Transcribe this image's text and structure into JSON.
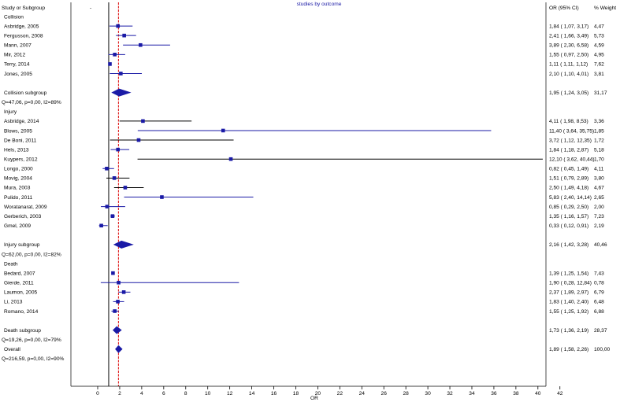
{
  "chart_data": {
    "type": "forest",
    "title": "studies by outcome",
    "xlabel": "OR",
    "xlim": [
      -1,
      42
    ],
    "xticks": [
      0,
      2,
      4,
      6,
      8,
      10,
      12,
      14,
      16,
      18,
      20,
      22,
      24,
      26,
      28,
      30,
      32,
      34,
      36,
      38,
      40,
      42
    ],
    "null_line": 1,
    "overall_line": 1.89,
    "headers": {
      "study": "Study or Subgroup",
      "ci": "OR (95% CI)",
      "weight": "% Weight",
      "dash": "-"
    },
    "rows": [
      {
        "kind": "group",
        "label": "Collision"
      },
      {
        "kind": "study",
        "label": "Asbridge, 2005",
        "or": 1.84,
        "lo": 1.07,
        "hi": 3.17,
        "ci_text": "1,84 ( 1,07, 3,17)",
        "weight": "4,47",
        "line": "blue"
      },
      {
        "kind": "study",
        "label": "Fergusson, 2008",
        "or": 2.41,
        "lo": 1.66,
        "hi": 3.49,
        "ci_text": "2,41 ( 1,66, 3,49)",
        "weight": "5,73",
        "line": "blue"
      },
      {
        "kind": "study",
        "label": "Mann, 2007",
        "or": 3.89,
        "lo": 2.3,
        "hi": 6.58,
        "ci_text": "3,89 ( 2,30, 6,58)",
        "weight": "4,59",
        "line": "blue"
      },
      {
        "kind": "study",
        "label": "Mir, 2012",
        "or": 1.55,
        "lo": 0.97,
        "hi": 2.5,
        "ci_text": "1,55 ( 0,97, 2,50)",
        "weight": "4,95",
        "line": "blue"
      },
      {
        "kind": "study",
        "label": "Terry, 2014",
        "or": 1.11,
        "lo": 1.11,
        "hi": 1.12,
        "ci_text": "1,11 ( 1,11, 1,12)",
        "weight": "7,62",
        "line": "blue"
      },
      {
        "kind": "study",
        "label": "Jones, 2005",
        "or": 2.1,
        "lo": 1.1,
        "hi": 4.01,
        "ci_text": "2,10 ( 1,10, 4,01)",
        "weight": "3,81",
        "line": "blue"
      },
      {
        "kind": "blank"
      },
      {
        "kind": "subtotal",
        "label": "Collision subgroup",
        "or": 1.95,
        "lo": 1.24,
        "hi": 3.05,
        "ci_text": "1,95 ( 1,24, 3,05)",
        "weight": "31,17",
        "stats": "Q=47,06, p=0,00, I2=89%"
      },
      {
        "kind": "blank"
      },
      {
        "kind": "group",
        "label": "Injury"
      },
      {
        "kind": "study",
        "label": "Asbridge, 2014",
        "or": 4.11,
        "lo": 1.98,
        "hi": 8.53,
        "ci_text": "4,11 ( 1,98, 8,53)",
        "weight": "3,36",
        "line": "black"
      },
      {
        "kind": "study",
        "label": "Blows, 2005",
        "or": 11.4,
        "lo": 3.64,
        "hi": 35.75,
        "ci_text": "11,40 ( 3,64, 35,75)",
        "weight": "1,85",
        "line": "blue"
      },
      {
        "kind": "study",
        "label": "De Boni, 2011",
        "or": 3.72,
        "lo": 1.12,
        "hi": 12.35,
        "ci_text": "3,72 ( 1,12, 12,35)",
        "weight": "1,72",
        "line": "black"
      },
      {
        "kind": "study",
        "label": "Hels, 2013",
        "or": 1.84,
        "lo": 1.18,
        "hi": 2.87,
        "ci_text": "1,84 ( 1,18, 2,87)",
        "weight": "5,18",
        "line": "blue"
      },
      {
        "kind": "study",
        "label": "Kuypers, 2012",
        "or": 12.1,
        "lo": 3.62,
        "hi": 40.44,
        "ci_text": "12,10 ( 3,62, 40,44)",
        "weight": "1,70",
        "line": "black"
      },
      {
        "kind": "study",
        "label": "Longo, 2000",
        "or": 0.82,
        "lo": 0.45,
        "hi": 1.49,
        "ci_text": "0,82 ( 0,45, 1,49)",
        "weight": "4,11",
        "line": "blue"
      },
      {
        "kind": "study",
        "label": "Movig, 2004",
        "or": 1.51,
        "lo": 0.79,
        "hi": 2.89,
        "ci_text": "1,51 ( 0,79, 2,89)",
        "weight": "3,80",
        "line": "black"
      },
      {
        "kind": "study",
        "label": "Mura, 2003",
        "or": 2.5,
        "lo": 1.49,
        "hi": 4.18,
        "ci_text": "2,50 ( 1,49, 4,18)",
        "weight": "4,67",
        "line": "black"
      },
      {
        "kind": "study",
        "label": "Pulido, 2011",
        "or": 5.83,
        "lo": 2.4,
        "hi": 14.14,
        "ci_text": "5,83 ( 2,40, 14,14)",
        "weight": "2,65",
        "line": "blue"
      },
      {
        "kind": "study",
        "label": "Woratanarat, 2009",
        "or": 0.85,
        "lo": 0.29,
        "hi": 2.5,
        "ci_text": "0,85 ( 0,29, 2,50)",
        "weight": "2,00",
        "line": "blue"
      },
      {
        "kind": "study",
        "label": "Gerberich, 2003",
        "or": 1.35,
        "lo": 1.16,
        "hi": 1.57,
        "ci_text": "1,35 ( 1,16, 1,57)",
        "weight": "7,23",
        "line": "blue"
      },
      {
        "kind": "study",
        "label": "Gmel, 2009",
        "or": 0.33,
        "lo": 0.12,
        "hi": 0.91,
        "ci_text": "0,33 ( 0,12, 0,91)",
        "weight": "2,19",
        "line": "blue"
      },
      {
        "kind": "blank"
      },
      {
        "kind": "subtotal",
        "label": "Injury subgroup",
        "or": 2.16,
        "lo": 1.42,
        "hi": 3.28,
        "ci_text": "2,16 ( 1,42, 3,28)",
        "weight": "40,46",
        "stats": "Q=62,00, p=0,00, I2=82%"
      },
      {
        "kind": "blank"
      },
      {
        "kind": "group",
        "label": "Death"
      },
      {
        "kind": "study",
        "label": "Bedard, 2007",
        "or": 1.39,
        "lo": 1.25,
        "hi": 1.54,
        "ci_text": "1,39 ( 1,25, 1,54)",
        "weight": "7,43",
        "line": "blue"
      },
      {
        "kind": "study",
        "label": "Gierde, 2011",
        "or": 1.9,
        "lo": 0.28,
        "hi": 12.84,
        "ci_text": "1,90 ( 0,28, 12,84)",
        "weight": "0,78",
        "line": "blue"
      },
      {
        "kind": "study",
        "label": "Laumon, 2005",
        "or": 2.37,
        "lo": 1.89,
        "hi": 2.97,
        "ci_text": "2,37 ( 1,89, 2,97)",
        "weight": "6,79",
        "line": "blue"
      },
      {
        "kind": "study",
        "label": "Li, 2013",
        "or": 1.83,
        "lo": 1.4,
        "hi": 2.4,
        "ci_text": "1,83 ( 1,40, 2,40)",
        "weight": "6,48",
        "line": "blue"
      },
      {
        "kind": "study",
        "label": "Romano, 2014",
        "or": 1.55,
        "lo": 1.25,
        "hi": 1.92,
        "ci_text": "1,55 ( 1,25, 1,92)",
        "weight": "6,88",
        "line": "blue"
      },
      {
        "kind": "blank"
      },
      {
        "kind": "subtotal",
        "label": "Death subgroup",
        "or": 1.73,
        "lo": 1.36,
        "hi": 2.19,
        "ci_text": "1,73 ( 1,36, 2,19)",
        "weight": "28,37",
        "stats": "Q=19,26, p=0,00, I2=79%"
      },
      {
        "kind": "blank"
      },
      {
        "kind": "subtotal",
        "label": "Overall",
        "or": 1.89,
        "lo": 1.58,
        "hi": 2.26,
        "ci_text": "1,89 ( 1,58, 2,26)",
        "weight": "100,00",
        "stats": "Q=216,59, p=0,00, I2=90%"
      }
    ],
    "colors": {
      "marker": "#1a1aa6",
      "ci_blue": "#1a1aa6",
      "ci_black": "#000000",
      "overall_line": "#e02020",
      "axis": "#000000"
    }
  }
}
